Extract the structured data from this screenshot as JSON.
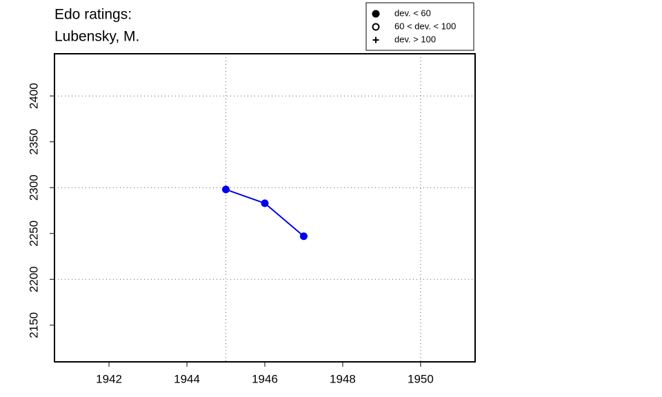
{
  "chart_data": {
    "type": "line",
    "title": [
      "Edo ratings:",
      "Lubensky, M."
    ],
    "x": [
      1945,
      1946,
      1947
    ],
    "series": [
      {
        "color": "#0000ee",
        "marker": "filled",
        "values": [
          2298,
          2283,
          2247
        ]
      }
    ],
    "xlim": [
      1940.6,
      1951.4
    ],
    "xticks": [
      1942,
      1944,
      1946,
      1948,
      1950
    ],
    "ylim": [
      2110,
      2446
    ],
    "yticks": [
      2150,
      2200,
      2250,
      2300,
      2350,
      2400
    ],
    "xgrid": [
      1945,
      1950
    ],
    "ygrid": [
      2200,
      2300,
      2400
    ],
    "legend": {
      "position": "top-right",
      "entries": [
        {
          "symbol": "filled",
          "label": "dev. < 60"
        },
        {
          "symbol": "open",
          "label": "60 < dev. < 100"
        },
        {
          "symbol": "plus",
          "label": "dev. > 100"
        }
      ]
    }
  }
}
